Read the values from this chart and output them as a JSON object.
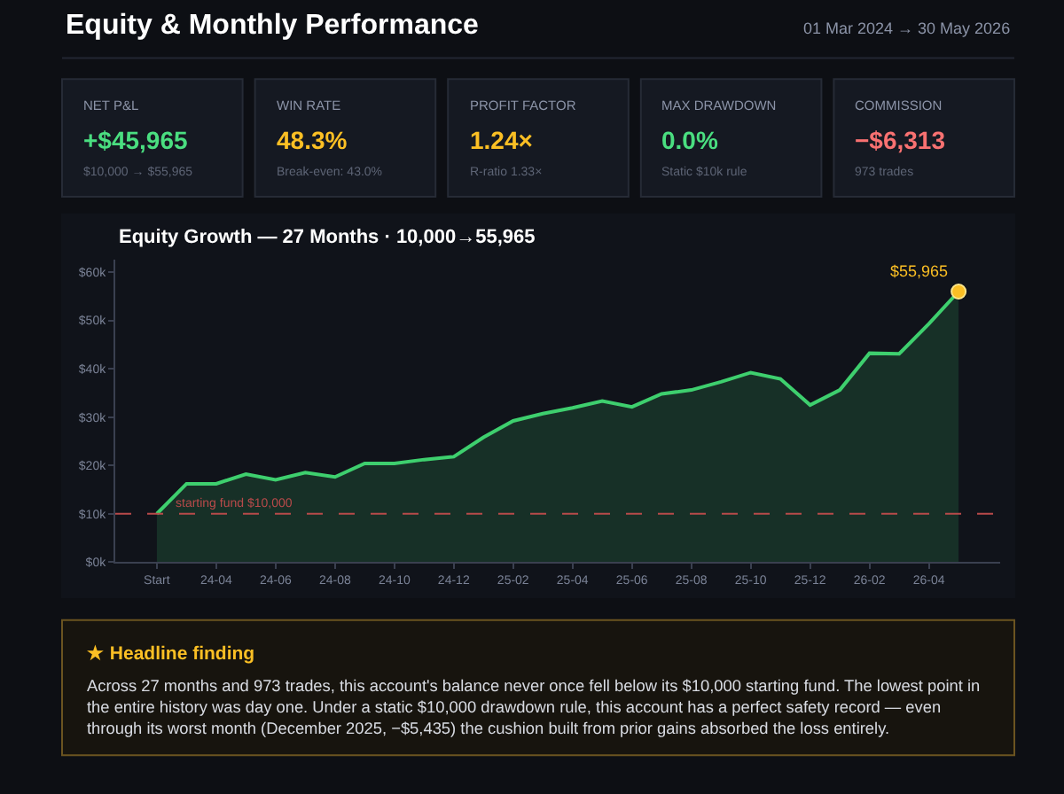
{
  "chart_data": [
    {
      "type": "other",
      "title": "Equity & Monthly Performance",
      "subtitle": "01 Mar 2024 → 30 May 2026",
      "annotations": [
        "NET P&L",
        "+$45,965",
        "$10,000 → $55,965",
        "WIN RATE",
        "48.3%",
        "Break-even: 43.0%",
        "PROFIT FACTOR",
        "1.24×",
        "R-ratio 1.33×",
        "MAX DRAWDOWN",
        "0.0%",
        "Static $10k rule",
        "COMMISSION",
        "−$6,313",
        "973 trades"
      ],
      "colors": [
        "#4ade80",
        "#fbbf24",
        "#fbbf24",
        "#4ade80",
        "#f87171"
      ]
    },
    {
      "type": "area",
      "title": "Equity Growth — 27 Months · 10,000→55,965",
      "categories": [
        "Start",
        null,
        "24-04",
        null,
        "24-06",
        null,
        "24-08",
        null,
        "24-10",
        null,
        "24-12",
        null,
        "25-02",
        null,
        "25-04",
        null,
        "25-06",
        null,
        "25-08",
        null,
        "25-10",
        null,
        "25-12",
        null,
        "26-02",
        null,
        "26-04",
        null
      ],
      "series": [
        {
          "color": "#3ecf6e",
          "values": [
            10000,
            16200,
            16200,
            18200,
            17000,
            18500,
            17600,
            20400,
            20400,
            21200,
            21800,
            25800,
            29200,
            30700,
            31900,
            33300,
            32100,
            34800,
            35600,
            37300,
            39200,
            37900,
            32500,
            35600,
            43200,
            43100,
            49300,
            55965
          ],
          "value_labels": [
            null,
            null,
            null,
            null,
            null,
            null,
            null,
            null,
            null,
            null,
            null,
            null,
            null,
            null,
            null,
            null,
            null,
            null,
            null,
            null,
            null,
            null,
            null,
            null,
            null,
            null,
            null,
            "$55,965"
          ]
        }
      ],
      "ylim": [
        0,
        62500
      ],
      "yticks": [
        {
          "value": 0,
          "label": "$0k"
        },
        {
          "value": 10000,
          "label": "$10k"
        },
        {
          "value": 20000,
          "label": "$20k"
        },
        {
          "value": 30000,
          "label": "$30k"
        },
        {
          "value": 40000,
          "label": "$40k"
        },
        {
          "value": 50000,
          "label": "$50k"
        },
        {
          "value": 60000,
          "label": "$60k"
        }
      ],
      "ref_lines": [
        {
          "axis": "y",
          "value": 10000,
          "label": "starting fund $10,000",
          "color": "#b84a4a",
          "line_style": "dashed"
        }
      ],
      "grid": false
    },
    {
      "type": "other",
      "title": "★ Headline finding",
      "annotations": [
        "Across 27 months and 973 trades, this account's balance never once fell below its $10,000 starting fund. The lowest point in the entire history was day one. Under a static $10,000 drawdown rule, this account has a perfect safety record — even through its worst month (December 2025, −$5,435) the cushion built from prior gains absorbed the loss entirely."
      ]
    }
  ]
}
